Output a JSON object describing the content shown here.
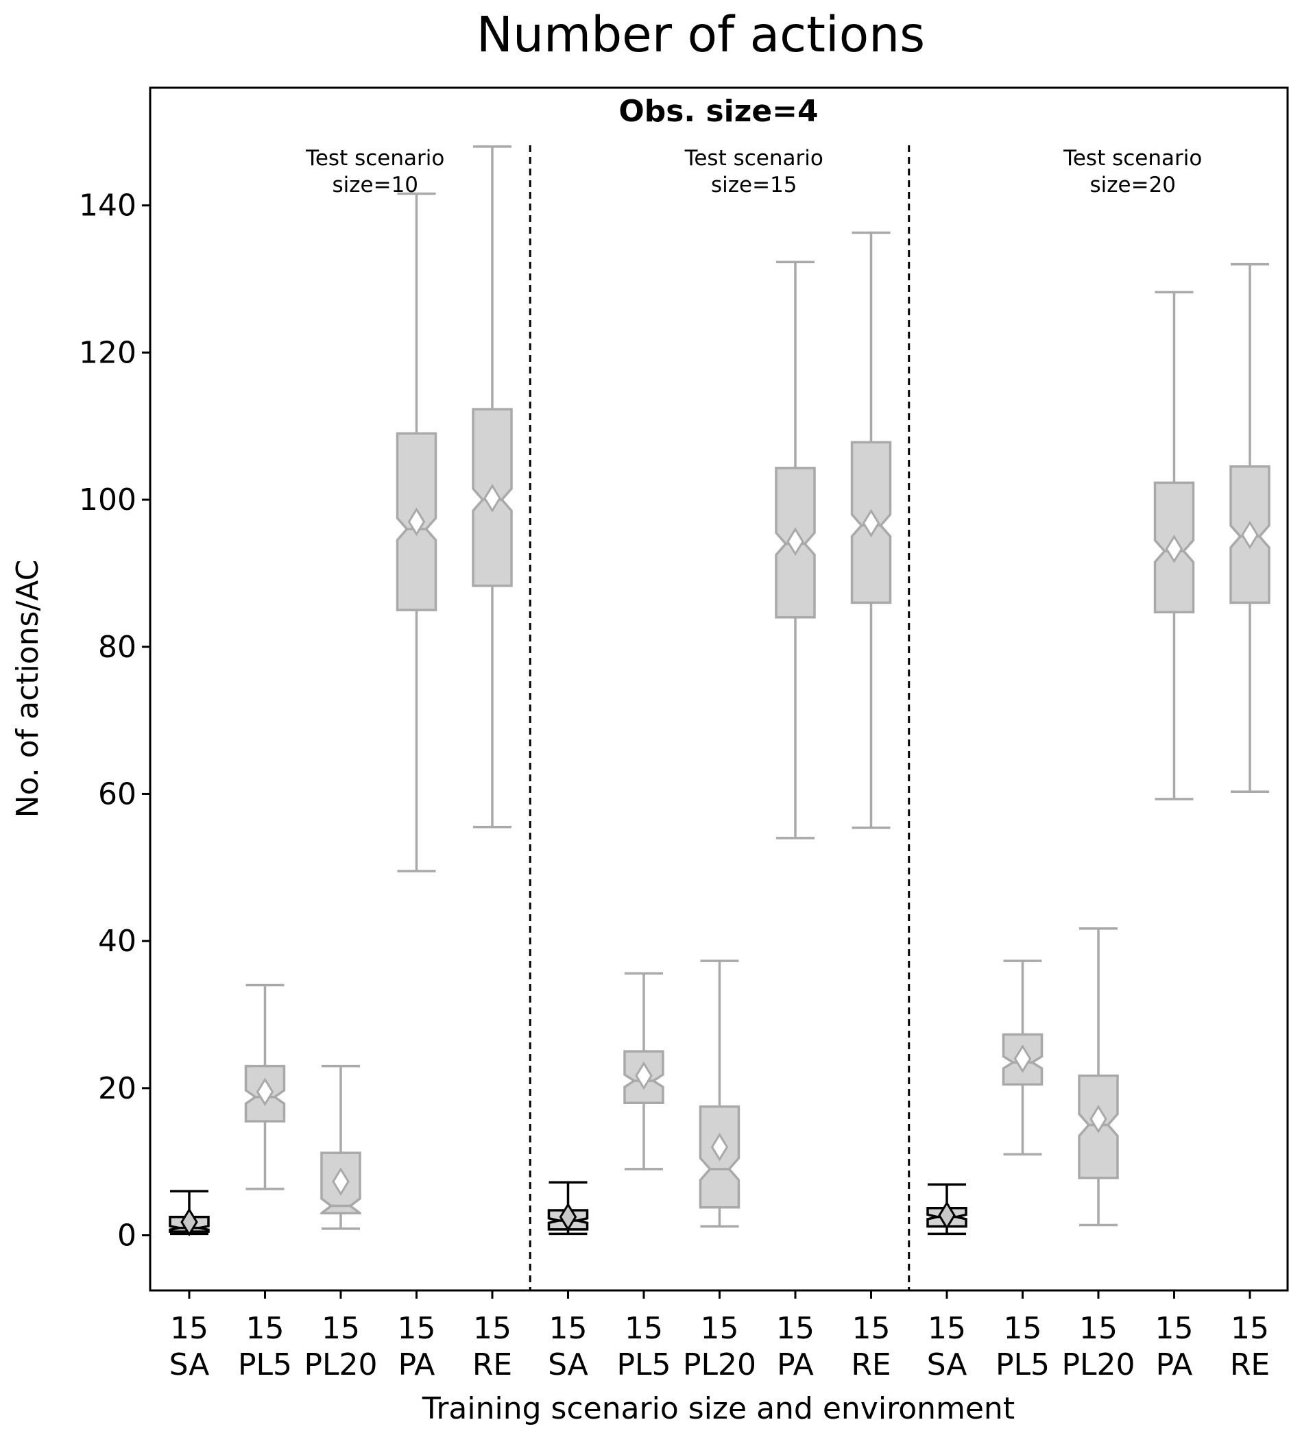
{
  "chart_data": {
    "type": "boxplot",
    "title": "Number of actions",
    "panel_title": "Obs. size=4",
    "xlabel": "Training scenario size and environment",
    "ylabel": "No. of actions/AC",
    "ylim": [
      -7.5,
      156
    ],
    "yticks": [
      0,
      20,
      40,
      60,
      80,
      100,
      120,
      140
    ],
    "groups": [
      {
        "label_line1": "Test scenario",
        "label_line2": "size=10"
      },
      {
        "label_line1": "Test scenario",
        "label_line2": "size=15"
      },
      {
        "label_line1": "Test scenario",
        "label_line2": "size=20"
      }
    ],
    "categories": [
      {
        "size": "15",
        "env": "SA"
      },
      {
        "size": "15",
        "env": "PL5"
      },
      {
        "size": "15",
        "env": "PL20"
      },
      {
        "size": "15",
        "env": "PA"
      },
      {
        "size": "15",
        "env": "RE"
      },
      {
        "size": "15",
        "env": "SA"
      },
      {
        "size": "15",
        "env": "PL5"
      },
      {
        "size": "15",
        "env": "PL20"
      },
      {
        "size": "15",
        "env": "PA"
      },
      {
        "size": "15",
        "env": "RE"
      },
      {
        "size": "15",
        "env": "SA"
      },
      {
        "size": "15",
        "env": "PL5"
      },
      {
        "size": "15",
        "env": "PL20"
      },
      {
        "size": "15",
        "env": "PA"
      },
      {
        "size": "15",
        "env": "RE"
      }
    ],
    "boxes": [
      {
        "group": 0,
        "env": "SA",
        "whislo": 0.2,
        "q1": 0.5,
        "median": 1.0,
        "q3": 2.5,
        "whishi": 6.0,
        "mean": 1.8,
        "style": "dark"
      },
      {
        "group": 0,
        "env": "PL5",
        "whislo": 6.3,
        "q1": 15.5,
        "median": 18.8,
        "q3": 23.0,
        "whishi": 34.0,
        "mean": 19.5,
        "style": "light"
      },
      {
        "group": 0,
        "env": "PL20",
        "whislo": 0.9,
        "q1": 3.0,
        "median": 4.0,
        "q3": 11.2,
        "whishi": 23.0,
        "mean": 7.3,
        "style": "light"
      },
      {
        "group": 0,
        "env": "PA",
        "whislo": 49.5,
        "q1": 85.0,
        "median": 96.0,
        "q3": 109.0,
        "whishi": 141.6,
        "mean": 97.0,
        "style": "light"
      },
      {
        "group": 0,
        "env": "RE",
        "whislo": 55.5,
        "q1": 88.3,
        "median": 100.0,
        "q3": 112.3,
        "whishi": 148.0,
        "mean": 100.2,
        "style": "light"
      },
      {
        "group": 1,
        "env": "SA",
        "whislo": 0.2,
        "q1": 0.8,
        "median": 2.0,
        "q3": 3.4,
        "whishi": 7.2,
        "mean": 2.5,
        "style": "dark"
      },
      {
        "group": 1,
        "env": "PL5",
        "whislo": 9.0,
        "q1": 18.0,
        "median": 21.0,
        "q3": 25.0,
        "whishi": 35.6,
        "mean": 21.7,
        "style": "light"
      },
      {
        "group": 1,
        "env": "PL20",
        "whislo": 1.2,
        "q1": 3.8,
        "median": 9.0,
        "q3": 17.5,
        "whishi": 37.3,
        "mean": 12.0,
        "style": "light"
      },
      {
        "group": 1,
        "env": "PA",
        "whislo": 54.0,
        "q1": 84.0,
        "median": 94.0,
        "q3": 104.3,
        "whishi": 132.3,
        "mean": 94.3,
        "style": "light"
      },
      {
        "group": 1,
        "env": "RE",
        "whislo": 55.4,
        "q1": 86.0,
        "median": 96.5,
        "q3": 107.8,
        "whishi": 136.3,
        "mean": 96.8,
        "style": "light"
      },
      {
        "group": 2,
        "env": "SA",
        "whislo": 0.2,
        "q1": 1.2,
        "median": 2.5,
        "q3": 3.7,
        "whishi": 6.9,
        "mean": 2.7,
        "style": "dark"
      },
      {
        "group": 2,
        "env": "PL5",
        "whislo": 11.0,
        "q1": 20.5,
        "median": 23.5,
        "q3": 27.3,
        "whishi": 37.3,
        "mean": 24.0,
        "style": "light"
      },
      {
        "group": 2,
        "env": "PL20",
        "whislo": 1.4,
        "q1": 7.8,
        "median": 15.0,
        "q3": 21.7,
        "whishi": 41.7,
        "mean": 15.8,
        "style": "light"
      },
      {
        "group": 2,
        "env": "PA",
        "whislo": 59.3,
        "q1": 84.7,
        "median": 93.0,
        "q3": 102.3,
        "whishi": 128.2,
        "mean": 93.3,
        "style": "light"
      },
      {
        "group": 2,
        "env": "RE",
        "whislo": 60.3,
        "q1": 86.0,
        "median": 95.0,
        "q3": 104.5,
        "whishi": 132.0,
        "mean": 95.2,
        "style": "light"
      }
    ],
    "separators_after": [
      5,
      10
    ],
    "colors": {
      "light_fill": "#d3d3d3",
      "light_edge": "#a9a9a9",
      "dark_fill": "#d3d3d3",
      "dark_edge": "#000000",
      "mean_fill_light": "#ffffff",
      "mean_fill_dark": "#c8c8c8",
      "axis": "#000000"
    }
  }
}
